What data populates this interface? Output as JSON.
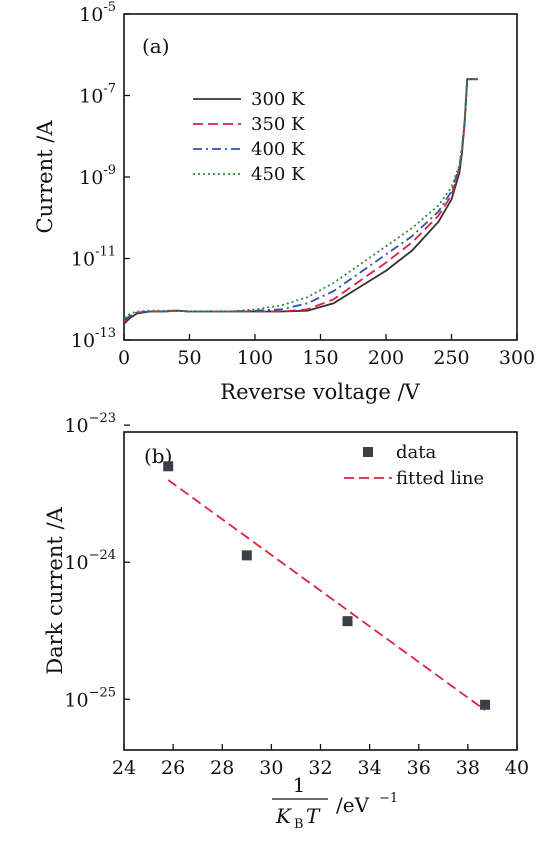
{
  "chart_data": [
    {
      "panel_label": "(a)",
      "type": "line",
      "xlabel": "Reverse voltage /V",
      "ylabel": "Current /A",
      "xlim": [
        0,
        300
      ],
      "ylim_log10": [
        -13,
        -5
      ],
      "y_scale": "log",
      "grid": false,
      "legend_placement": "upper-left",
      "x_ticks": [
        0,
        50,
        100,
        150,
        200,
        250,
        300
      ],
      "y_ticks": [
        {
          "base": "10",
          "exp": "-5",
          "value": -5
        },
        {
          "base": "10",
          "exp": "-7",
          "value": -7
        },
        {
          "base": "10",
          "exp": "-9",
          "value": -9
        },
        {
          "base": "10",
          "exp": "-11",
          "value": -11
        },
        {
          "base": "10",
          "exp": "-13",
          "value": -13
        }
      ],
      "series": [
        {
          "name": "300 K",
          "color": "#333333",
          "style": "solid",
          "x": [
            0,
            5,
            10,
            20,
            30,
            40,
            50,
            80,
            100,
            120,
            140,
            160,
            180,
            200,
            220,
            240,
            250,
            256,
            258,
            260,
            262,
            270
          ],
          "y_log10": [
            -12.6,
            -12.45,
            -12.35,
            -12.3,
            -12.3,
            -12.28,
            -12.3,
            -12.3,
            -12.3,
            -12.3,
            -12.28,
            -12.1,
            -11.7,
            -11.3,
            -10.8,
            -10.1,
            -9.55,
            -8.9,
            -8.4,
            -7.7,
            -6.6,
            -6.6
          ]
        },
        {
          "name": "350 K",
          "color": "#d8243c",
          "style": "dashed",
          "x": [
            0,
            5,
            10,
            20,
            30,
            40,
            50,
            80,
            100,
            120,
            140,
            160,
            180,
            200,
            220,
            240,
            250,
            256,
            258,
            260,
            262,
            270
          ],
          "y_log10": [
            -12.55,
            -12.4,
            -12.33,
            -12.3,
            -12.3,
            -12.28,
            -12.3,
            -12.3,
            -12.3,
            -12.3,
            -12.25,
            -12.0,
            -11.55,
            -11.1,
            -10.6,
            -9.95,
            -9.45,
            -8.8,
            -8.35,
            -7.7,
            -6.6,
            -6.6
          ]
        },
        {
          "name": "400 K",
          "color": "#2c55a8",
          "style": "dashdot",
          "x": [
            0,
            5,
            10,
            20,
            30,
            40,
            50,
            80,
            100,
            120,
            140,
            160,
            180,
            200,
            220,
            240,
            250,
            256,
            258,
            260,
            262,
            270
          ],
          "y_log10": [
            -12.5,
            -12.4,
            -12.32,
            -12.3,
            -12.3,
            -12.28,
            -12.3,
            -12.3,
            -12.28,
            -12.25,
            -12.1,
            -11.8,
            -11.35,
            -10.9,
            -10.45,
            -9.85,
            -9.35,
            -8.75,
            -8.3,
            -7.65,
            -6.6,
            -6.6
          ]
        },
        {
          "name": "450 K",
          "color": "#2e8b3a",
          "style": "dotted",
          "x": [
            0,
            5,
            10,
            20,
            30,
            40,
            50,
            80,
            100,
            120,
            140,
            160,
            180,
            200,
            220,
            240,
            250,
            256,
            258,
            260,
            262,
            270
          ],
          "y_log10": [
            -12.45,
            -12.35,
            -12.3,
            -12.28,
            -12.28,
            -12.27,
            -12.3,
            -12.3,
            -12.25,
            -12.15,
            -11.95,
            -11.6,
            -11.15,
            -10.7,
            -10.25,
            -9.7,
            -9.25,
            -8.7,
            -8.25,
            -7.6,
            -6.6,
            -6.6
          ]
        }
      ]
    },
    {
      "panel_label": "(b)",
      "type": "scatter",
      "xlabel_fraction_numerator": "1",
      "xlabel_K": "K",
      "xlabel_sub": "B",
      "xlabel_T": "T",
      "xlabel_unit": "/eV",
      "xlabel_unit_sup": "−1",
      "ylabel": "Dark current /A",
      "xlim": [
        24,
        40
      ],
      "ylim_log10": [
        -25.37,
        -23.05
      ],
      "y_scale": "log",
      "grid": false,
      "legend_placement": "top-right",
      "x_ticks": [
        24,
        26,
        28,
        30,
        32,
        34,
        36,
        38,
        40
      ],
      "y_ticks": [
        {
          "base": "10",
          "exp": "−23",
          "value": -23
        },
        {
          "base": "10",
          "exp": "−24",
          "value": -24
        },
        {
          "base": "10",
          "exp": "−25",
          "value": -25
        }
      ],
      "series": [
        {
          "name": "data",
          "color": "#3a4048",
          "marker": "square",
          "x": [
            25.8,
            29.0,
            33.1,
            38.7
          ],
          "y_log10": [
            -23.3,
            -23.95,
            -24.43,
            -25.04
          ]
        },
        {
          "name": "fitted line",
          "color": "#d8243c",
          "style": "dashed",
          "x": [
            25.8,
            38.7
          ],
          "y_log10": [
            -23.4,
            -25.08
          ]
        }
      ]
    }
  ]
}
